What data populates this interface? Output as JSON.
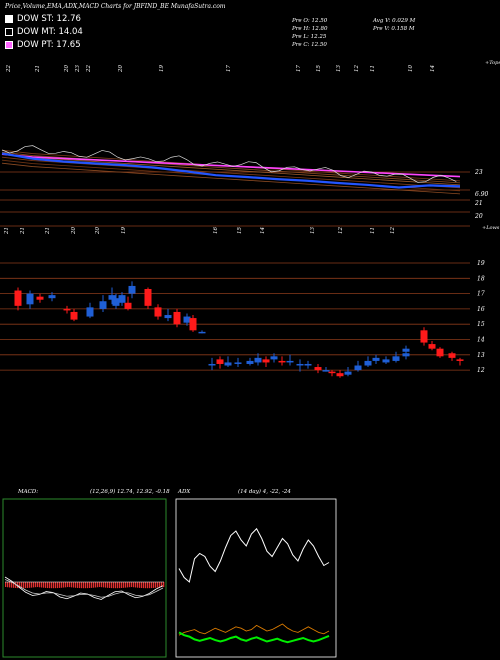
{
  "header": {
    "title": "Price,Volume,EMA,ADX,MACD Charts for JBFIND_BE MunafaSutra.com"
  },
  "legend": [
    {
      "label": "DOW ST: 12.76",
      "color": "#ffffff"
    },
    {
      "label": "DOW MT: 14.04",
      "color": "#000000"
    },
    {
      "label": "DOW PT: 17.65",
      "color": "#ff66ff"
    }
  ],
  "ohlc": {
    "open": "Pre   O: 12.50",
    "high": "Pre   H: 12.80",
    "low": "Pre   L: 12.25",
    "close": "Pre   C: 12.50",
    "avg_vol": "Avg V: 0.029  M",
    "pre_vol": "Pre   V: 0.158  M"
  },
  "colors": {
    "background": "#000000",
    "up_candle": "#1f5fd6",
    "down_candle": "#ff1a1a",
    "ema_pink": "#ff44ff",
    "ema_blue": "#2255ff",
    "grid": "#8a3a1a",
    "macd_fill": "#e03030",
    "adx_green": "#00ee00",
    "adx_orange": "#d97a00"
  },
  "top_labels": {
    "dates": [
      "22",
      "21",
      "20",
      "23",
      "22",
      "20",
      "19",
      "17",
      "17",
      "15",
      "13",
      "12",
      "11",
      "10",
      "14"
    ],
    "tops": "+Tops"
  },
  "mid_labels": {
    "dates": [
      "21",
      "21",
      "21",
      "20",
      "20",
      "19",
      "16",
      "15",
      "14",
      "13",
      "12",
      "11",
      "12"
    ],
    "lows": "+Lows"
  },
  "ema_axis": [
    "23",
    "6.90",
    "21",
    "20"
  ],
  "price_axis": [
    "19",
    "18",
    "17",
    "16",
    "15",
    "14",
    "13",
    "12"
  ],
  "panels": {
    "macd_title": "MACD:",
    "macd_values": "(12,26,9)  12.74,  12.92,  -0.18",
    "adx_title": "ADX",
    "adx_values": "(14  day) 4,  -22,  -24"
  },
  "chart_data": [
    {
      "type": "line",
      "title": "Price,Volume,EMA,ADX,MACD Charts for JBFIND_BE MunafaSutra.com",
      "description_axis": [
        "23",
        "21",
        "20"
      ],
      "series": [
        {
          "name": "EMA pink",
          "values": [
            23.9,
            23.7,
            23.6,
            23.5,
            23.4,
            23.3,
            23.2,
            23.1,
            23.0,
            22.9,
            22.8,
            22.7,
            22.6,
            22.5,
            22.4,
            22.3
          ]
        },
        {
          "name": "EMA blue",
          "values": [
            24.1,
            23.8,
            23.6,
            23.4,
            23.2,
            23.0,
            22.8,
            22.6,
            22.5,
            22.3,
            22.1,
            21.9,
            21.8,
            21.7,
            21.9,
            21.8
          ]
        }
      ]
    },
    {
      "type": "bar",
      "title": "Candles",
      "ylim": [
        11.5,
        19.5
      ],
      "candles": [
        {
          "o": 17.2,
          "c": 16.2,
          "h": 17.4,
          "l": 15.9
        },
        {
          "o": 16.3,
          "c": 17.0,
          "h": 17.2,
          "l": 16.0
        },
        {
          "o": 16.8,
          "c": 16.6,
          "h": 17.0,
          "l": 16.4
        },
        {
          "o": 16.7,
          "c": 16.9,
          "h": 17.1,
          "l": 16.5
        },
        {
          "o": 16.0,
          "c": 15.9,
          "h": 16.2,
          "l": 15.7
        },
        {
          "o": 15.8,
          "c": 15.3,
          "h": 16.0,
          "l": 15.2
        },
        {
          "o": 15.5,
          "c": 16.1,
          "h": 16.4,
          "l": 15.4
        },
        {
          "o": 16.0,
          "c": 16.5,
          "h": 16.9,
          "l": 15.8
        },
        {
          "o": 16.6,
          "c": 16.9,
          "h": 17.4,
          "l": 16.3
        },
        {
          "o": 17.0,
          "c": 17.5,
          "h": 17.8,
          "l": 16.7
        },
        {
          "o": 16.4,
          "c": 16.0,
          "h": 16.8,
          "l": 15.9
        },
        {
          "o": 16.2,
          "c": 16.7,
          "h": 17.0,
          "l": 16.0
        },
        {
          "o": 16.4,
          "c": 16.9,
          "h": 17.1,
          "l": 16.2
        },
        {
          "o": 17.3,
          "c": 16.2,
          "h": 17.4,
          "l": 16.0
        },
        {
          "o": 16.1,
          "c": 15.5,
          "h": 16.3,
          "l": 15.3
        },
        {
          "o": 15.4,
          "c": 15.6,
          "h": 16.0,
          "l": 15.2
        },
        {
          "o": 15.8,
          "c": 15.0,
          "h": 16.0,
          "l": 14.8
        },
        {
          "o": 15.1,
          "c": 15.5,
          "h": 15.7,
          "l": 14.9
        },
        {
          "o": 15.4,
          "c": 14.6,
          "h": 15.6,
          "l": 14.5
        },
        {
          "o": 14.5,
          "c": 14.5,
          "h": 14.6,
          "l": 14.4
        },
        {
          "o": 12.4,
          "c": 12.4,
          "h": 12.8,
          "l": 12.0
        },
        {
          "o": 12.7,
          "c": 12.4,
          "h": 12.9,
          "l": 12.1
        },
        {
          "o": 12.3,
          "c": 12.5,
          "h": 12.9,
          "l": 12.2
        },
        {
          "o": 12.4,
          "c": 12.5,
          "h": 12.8,
          "l": 12.2
        },
        {
          "o": 12.4,
          "c": 12.6,
          "h": 12.8,
          "l": 12.3
        },
        {
          "o": 12.5,
          "c": 12.8,
          "h": 13.1,
          "l": 12.3
        },
        {
          "o": 12.7,
          "c": 12.5,
          "h": 12.9,
          "l": 12.2
        },
        {
          "o": 12.7,
          "c": 12.9,
          "h": 13.1,
          "l": 12.5
        },
        {
          "o": 12.6,
          "c": 12.5,
          "h": 12.9,
          "l": 12.3
        },
        {
          "o": 12.5,
          "c": 12.6,
          "h": 13.0,
          "l": 12.3
        },
        {
          "o": 12.4,
          "c": 12.4,
          "h": 12.7,
          "l": 11.9
        },
        {
          "o": 12.3,
          "c": 12.4,
          "h": 12.6,
          "l": 12.1
        },
        {
          "o": 12.2,
          "c": 12.0,
          "h": 12.4,
          "l": 11.8
        },
        {
          "o": 12.0,
          "c": 12.0,
          "h": 12.2,
          "l": 11.9
        },
        {
          "o": 11.9,
          "c": 11.8,
          "h": 12.0,
          "l": 11.6
        },
        {
          "o": 11.8,
          "c": 11.6,
          "h": 12.0,
          "l": 11.5
        },
        {
          "o": 11.7,
          "c": 11.9,
          "h": 12.2,
          "l": 11.6
        },
        {
          "o": 12.0,
          "c": 12.3,
          "h": 12.6,
          "l": 11.9
        },
        {
          "o": 12.3,
          "c": 12.6,
          "h": 12.9,
          "l": 12.2
        },
        {
          "o": 12.6,
          "c": 12.8,
          "h": 13.0,
          "l": 12.4
        },
        {
          "o": 12.5,
          "c": 12.7,
          "h": 12.9,
          "l": 12.4
        },
        {
          "o": 12.6,
          "c": 12.9,
          "h": 13.2,
          "l": 12.5
        },
        {
          "o": 12.9,
          "c": 13.1,
          "h": 13.5,
          "l": 12.7
        },
        {
          "o": 13.2,
          "c": 13.4,
          "h": 13.6,
          "l": 13.1
        },
        {
          "o": 14.6,
          "c": 13.8,
          "h": 14.8,
          "l": 13.6
        },
        {
          "o": 13.7,
          "c": 13.4,
          "h": 13.9,
          "l": 13.3
        },
        {
          "o": 13.4,
          "c": 12.9,
          "h": 13.5,
          "l": 12.8
        },
        {
          "o": 13.1,
          "c": 12.8,
          "h": 13.2,
          "l": 12.6
        },
        {
          "o": 12.7,
          "c": 12.6,
          "h": 12.8,
          "l": 12.3
        }
      ]
    },
    {
      "type": "line",
      "title": "MACD:",
      "series": [
        {
          "name": "MACD",
          "values": [
            0.92,
            0.75,
            0.52,
            0.31,
            0.18,
            0.22,
            0.34,
            0.3,
            0.12,
            0.05,
            0.15,
            0.28,
            0.24,
            0.1,
            0.02,
            0.18,
            0.33,
            0.36,
            0.21,
            0.09,
            0.14,
            0.26,
            0.44,
            0.57
          ]
        },
        {
          "name": "Signal",
          "values": [
            0.82,
            0.71,
            0.56,
            0.4,
            0.28,
            0.24,
            0.28,
            0.29,
            0.22,
            0.15,
            0.17,
            0.22,
            0.23,
            0.18,
            0.11,
            0.14,
            0.24,
            0.31,
            0.28,
            0.19,
            0.16,
            0.21,
            0.34,
            0.48
          ]
        }
      ]
    },
    {
      "type": "line",
      "title": "ADX",
      "series": [
        {
          "name": "ADX",
          "values": [
            0.42,
            0.3,
            0.24,
            0.55,
            0.62,
            0.58,
            0.45,
            0.38,
            0.52,
            0.7,
            0.86,
            0.92,
            0.8,
            0.72,
            0.88,
            0.95,
            0.82,
            0.65,
            0.58,
            0.7,
            0.82,
            0.75,
            0.6,
            0.52,
            0.68,
            0.8,
            0.72,
            0.58,
            0.46,
            0.5
          ]
        },
        {
          "name": "+DI",
          "values": [
            0.14,
            0.18,
            0.2,
            0.22,
            0.18,
            0.16,
            0.2,
            0.24,
            0.21,
            0.18,
            0.22,
            0.26,
            0.24,
            0.2,
            0.22,
            0.28,
            0.24,
            0.2,
            0.22,
            0.26,
            0.3,
            0.24,
            0.2,
            0.18,
            0.22,
            0.26,
            0.22,
            0.18,
            0.16,
            0.2
          ]
        },
        {
          "name": "-DI",
          "values": [
            0.18,
            0.14,
            0.12,
            0.08,
            0.06,
            0.08,
            0.1,
            0.07,
            0.05,
            0.07,
            0.1,
            0.12,
            0.08,
            0.06,
            0.09,
            0.11,
            0.08,
            0.05,
            0.07,
            0.09,
            0.06,
            0.04,
            0.06,
            0.08,
            0.1,
            0.07,
            0.05,
            0.07,
            0.1,
            0.13
          ]
        }
      ]
    }
  ]
}
